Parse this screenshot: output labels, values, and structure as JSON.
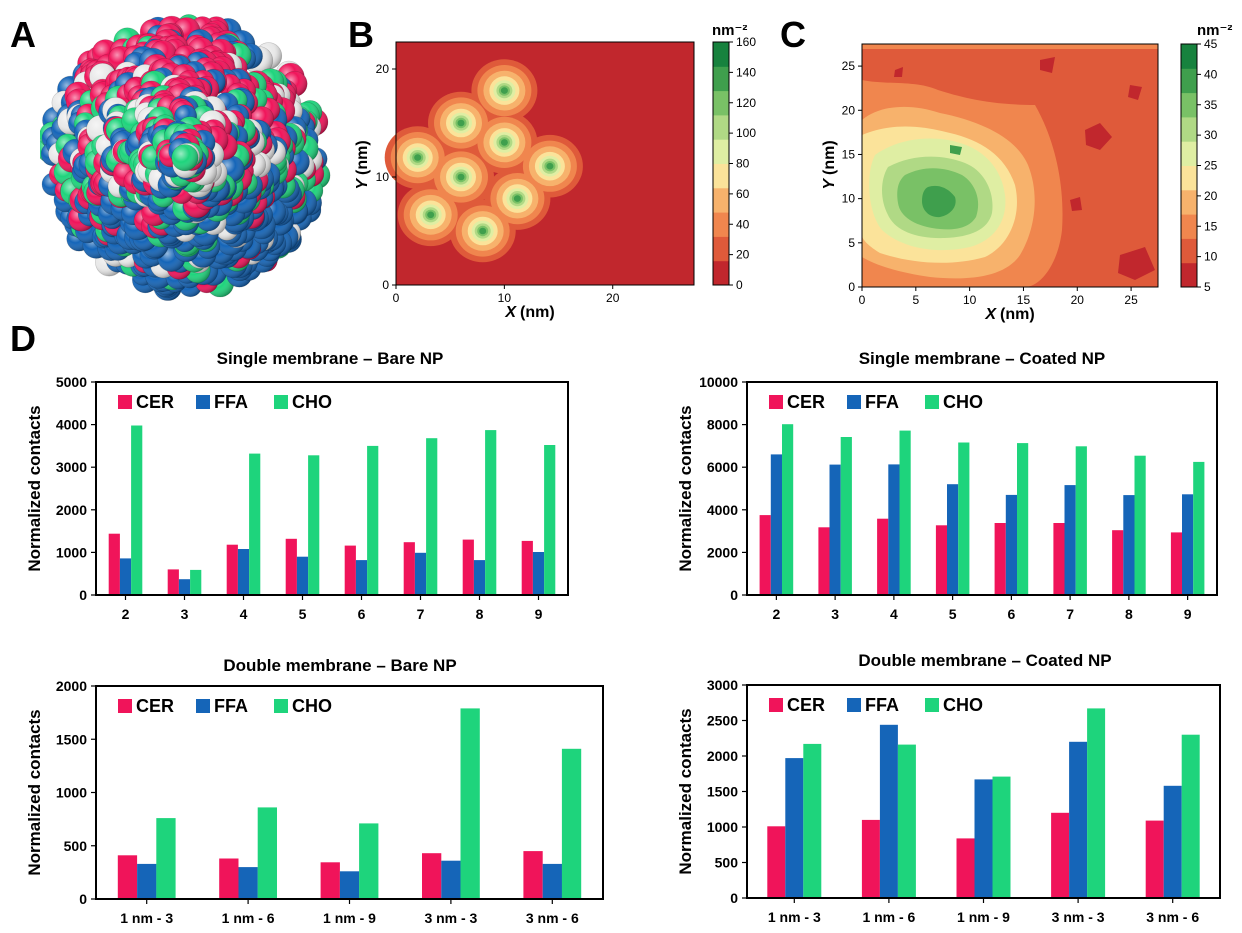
{
  "panels": {
    "A": "A",
    "B": "B",
    "C": "C",
    "D": "D"
  },
  "colors": {
    "cer": "#f0145a",
    "ffa": "#1565b8",
    "cho": "#1ed47c",
    "white": "#e9e9e9",
    "density_scale": [
      "#c1272d",
      "#df5a3a",
      "#f0864e",
      "#f7b26c",
      "#fbe39a",
      "#dfeea3",
      "#b0d985",
      "#79c166",
      "#3f9f4d",
      "#17823e"
    ]
  },
  "panel_b": {
    "colorbar_unit": "nm⁻²",
    "colorbar_ticks": [
      "0",
      "20",
      "40",
      "60",
      "80",
      "100",
      "120",
      "140",
      "160"
    ],
    "xlabel_var": "X",
    "xlabel_unit": "(nm)",
    "ylabel_var": "Y",
    "ylabel_unit": "(nm)",
    "x_ticks": [
      "0",
      "10",
      "20"
    ],
    "y_ticks": [
      "0",
      "10",
      "20"
    ],
    "hotspots": [
      {
        "x": 2.0,
        "y": 11.8
      },
      {
        "x": 6.0,
        "y": 15.0
      },
      {
        "x": 10.0,
        "y": 18.0
      },
      {
        "x": 6.0,
        "y": 10.0
      },
      {
        "x": 10.0,
        "y": 13.2
      },
      {
        "x": 14.2,
        "y": 11.0
      },
      {
        "x": 3.2,
        "y": 6.5
      },
      {
        "x": 8.0,
        "y": 5.0
      },
      {
        "x": 11.2,
        "y": 8.0
      }
    ]
  },
  "panel_c": {
    "colorbar_unit": "nm⁻²",
    "colorbar_ticks": [
      "5",
      "10",
      "15",
      "20",
      "25",
      "30",
      "35",
      "40",
      "45"
    ],
    "xlabel_var": "X",
    "xlabel_unit": "(nm)",
    "ylabel_var": "Y",
    "ylabel_unit": "(nm)",
    "x_ticks": [
      "0",
      "5",
      "10",
      "15",
      "20",
      "25"
    ],
    "y_ticks": [
      "0",
      "5",
      "10",
      "15",
      "20",
      "25"
    ]
  },
  "chart_data": [
    {
      "type": "bar",
      "title": "Single membrane – Bare NP",
      "ylabel": "Normalized contacts",
      "ylim": [
        0,
        5000
      ],
      "yticks": [
        "0",
        "1000",
        "2000",
        "3000",
        "4000",
        "5000"
      ],
      "categories": [
        "2",
        "3",
        "4",
        "5",
        "6",
        "7",
        "8",
        "9"
      ],
      "legend": "top-left",
      "series": [
        {
          "name": "CER",
          "values": [
            1440,
            600,
            1180,
            1320,
            1160,
            1240,
            1300,
            1270
          ]
        },
        {
          "name": "FFA",
          "values": [
            860,
            370,
            1080,
            900,
            820,
            990,
            820,
            1010
          ]
        },
        {
          "name": "CHO",
          "values": [
            3980,
            590,
            3320,
            3280,
            3500,
            3680,
            3870,
            3520
          ]
        }
      ]
    },
    {
      "type": "bar",
      "title": "Single membrane – Coated NP",
      "ylabel": "Normalized contacts",
      "ylim": [
        0,
        10000
      ],
      "yticks": [
        "0",
        "2000",
        "4000",
        "6000",
        "8000",
        "10000"
      ],
      "categories": [
        "2",
        "3",
        "4",
        "5",
        "6",
        "7",
        "8",
        "9"
      ],
      "legend": "top-left",
      "series": [
        {
          "name": "CER",
          "values": [
            3750,
            3180,
            3580,
            3270,
            3380,
            3380,
            3040,
            2940
          ]
        },
        {
          "name": "FFA",
          "values": [
            6600,
            6120,
            6130,
            5200,
            4700,
            5160,
            4690,
            4730
          ]
        },
        {
          "name": "CHO",
          "values": [
            8020,
            7420,
            7720,
            7160,
            7130,
            6980,
            6540,
            6250
          ]
        }
      ]
    },
    {
      "type": "bar",
      "title": "Double membrane – Bare NP",
      "ylabel": "Normalized contacts",
      "ylim": [
        0,
        2000
      ],
      "yticks": [
        "0",
        "500",
        "1000",
        "1500",
        "2000"
      ],
      "categories": [
        "1 nm - 3",
        "1 nm - 6",
        "1 nm - 9",
        "3 nm - 3",
        "3 nm - 6"
      ],
      "legend": "top-left",
      "series": [
        {
          "name": "CER",
          "values": [
            410,
            380,
            345,
            430,
            450
          ]
        },
        {
          "name": "FFA",
          "values": [
            330,
            300,
            260,
            360,
            330
          ]
        },
        {
          "name": "CHO",
          "values": [
            760,
            860,
            710,
            1790,
            1410
          ]
        }
      ]
    },
    {
      "type": "bar",
      "title": "Double membrane – Coated NP",
      "ylabel": "Normalized contacts",
      "ylim": [
        0,
        3000
      ],
      "yticks": [
        "0",
        "500",
        "1000",
        "1500",
        "2000",
        "2500",
        "3000"
      ],
      "categories": [
        "1 nm - 3",
        "1 nm - 6",
        "1 nm - 9",
        "3 nm - 3",
        "3 nm - 6"
      ],
      "legend": "top-left",
      "series": [
        {
          "name": "CER",
          "values": [
            1010,
            1100,
            840,
            1200,
            1090
          ]
        },
        {
          "name": "FFA",
          "values": [
            1970,
            2440,
            1670,
            2200,
            1580
          ]
        },
        {
          "name": "CHO",
          "values": [
            2170,
            2160,
            1710,
            2670,
            2300
          ]
        }
      ]
    }
  ]
}
